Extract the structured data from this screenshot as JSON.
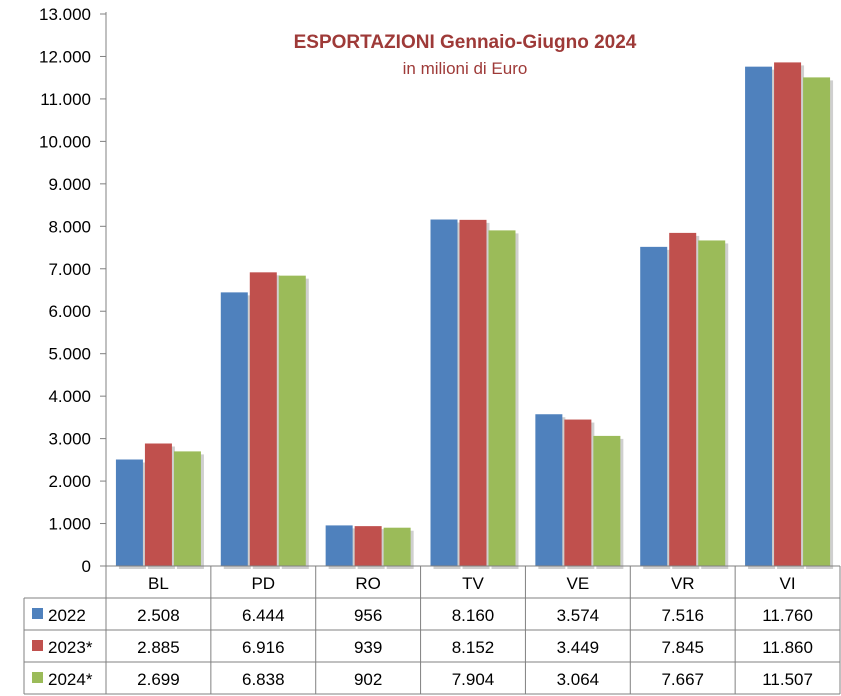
{
  "chart_data": {
    "type": "bar",
    "title": "ESPORTAZIONI Gennaio-Giugno 2024",
    "subtitle": "in milioni di Euro",
    "categories": [
      "BL",
      "PD",
      "RO",
      "TV",
      "VE",
      "VR",
      "VI"
    ],
    "ylim": [
      0,
      13000
    ],
    "yticks": [
      "0",
      "1.000",
      "2.000",
      "3.000",
      "4.000",
      "5.000",
      "6.000",
      "7.000",
      "8.000",
      "9.000",
      "10.000",
      "11.000",
      "12.000",
      "13.000"
    ],
    "ytick_values": [
      0,
      1000,
      2000,
      3000,
      4000,
      5000,
      6000,
      7000,
      8000,
      9000,
      10000,
      11000,
      12000,
      13000
    ],
    "series": [
      {
        "name": "2022",
        "color": "#4f81bd",
        "values": [
          2508,
          6444,
          956,
          8160,
          3574,
          7516,
          11760
        ],
        "labels": [
          "2.508",
          "6.444",
          "956",
          "8.160",
          "3.574",
          "7.516",
          "11.760"
        ]
      },
      {
        "name": "2023*",
        "color": "#c0504d",
        "values": [
          2885,
          6916,
          939,
          8152,
          3449,
          7845,
          11860
        ],
        "labels": [
          "2.885",
          "6.916",
          "939",
          "8.152",
          "3.449",
          "7.845",
          "11.860"
        ]
      },
      {
        "name": "2024*",
        "color": "#9bbb59",
        "values": [
          2699,
          6838,
          902,
          7904,
          3064,
          7667,
          11507
        ],
        "labels": [
          "2.699",
          "6.838",
          "902",
          "7.904",
          "3.064",
          "7.667",
          "11.507"
        ]
      }
    ],
    "grid": false,
    "legend": "data-table"
  }
}
